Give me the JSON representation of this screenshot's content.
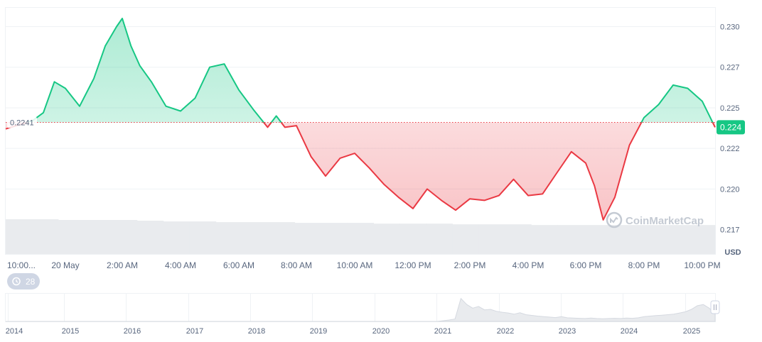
{
  "chart_data": {
    "type": "area",
    "reference_value": 0.2241,
    "reference_label": "0.2241",
    "last_price_label": "0.224",
    "currency_label": "USD",
    "watermark": "CoinMarketCap",
    "range_badge_value": "28",
    "ylim": [
      0.216,
      0.2312
    ],
    "y_ticks": [
      {
        "value": 0.23,
        "label": "0.230"
      },
      {
        "value": 0.2275,
        "label": "0.227"
      },
      {
        "value": 0.225,
        "label": "0.225"
      },
      {
        "value": 0.2225,
        "label": "0.222"
      },
      {
        "value": 0.22,
        "label": "0.220"
      },
      {
        "value": 0.2175,
        "label": "0.217"
      }
    ],
    "x_ticks": [
      "10:00...",
      "20 May",
      "2:00 AM",
      "4:00 AM",
      "6:00 AM",
      "8:00 AM",
      "10:00 AM",
      "12:00 PM",
      "2:00 PM",
      "4:00 PM",
      "6:00 PM",
      "8:00 PM",
      "10:00 PM"
    ],
    "x_tick_hours": [
      0,
      2,
      4,
      6,
      8,
      10,
      12,
      14,
      16,
      18,
      20,
      22,
      24
    ],
    "series": [
      {
        "x_hours": [
          0,
          0.5,
          1,
          1.5,
          2,
          2.5,
          3,
          3.4,
          3.8,
          4,
          4.3,
          4.6,
          5,
          5.5,
          6,
          6.5,
          7,
          7.5,
          8,
          8.5,
          9,
          9.3,
          9.6,
          10,
          10.5,
          11,
          11.5,
          12,
          12.5,
          13,
          13.5,
          14,
          14.5,
          15,
          15.5,
          16,
          16.5,
          17,
          17.5,
          18,
          18.5,
          19,
          19.5,
          20,
          20.3,
          20.6,
          21,
          21.5,
          22,
          22.5,
          23,
          23.5,
          24,
          24.5
        ],
        "values": [
          0.2237,
          0.2242,
          0.2247,
          0.2266,
          0.2262,
          0.2251,
          0.2268,
          0.2288,
          0.23,
          0.2305,
          0.2288,
          0.2276,
          0.2266,
          0.2251,
          0.2248,
          0.2256,
          0.2275,
          0.2277,
          0.2261,
          0.2249,
          0.2238,
          0.2245,
          0.2238,
          0.2239,
          0.222,
          0.2208,
          0.2219,
          0.2222,
          0.2213,
          0.2203,
          0.2195,
          0.2188,
          0.22,
          0.2193,
          0.2187,
          0.2194,
          0.2193,
          0.2196,
          0.2206,
          0.2196,
          0.2197,
          0.221,
          0.2223,
          0.2216,
          0.2202,
          0.2181,
          0.2195,
          0.2227,
          0.2244,
          0.2252,
          0.2264,
          0.2262,
          0.2254,
          0.2238
        ]
      }
    ],
    "volume": [
      0.48,
      0.48,
      0.47,
      0.47,
      0.47,
      0.46,
      0.45,
      0.45,
      0.44,
      0.44,
      0.44,
      0.43,
      0.43,
      0.43,
      0.42,
      0.42,
      0.42,
      0.41,
      0.41,
      0.41,
      0.4,
      0.4,
      0.4,
      0.4,
      0.4,
      0.4,
      0.4
    ],
    "history": {
      "year_labels": [
        "2014",
        "2015",
        "2016",
        "2017",
        "2018",
        "2019",
        "2020",
        "2021",
        "2022",
        "2023",
        "2024",
        "2025"
      ],
      "values": [
        0,
        0,
        0,
        0,
        0,
        0,
        0,
        0,
        0,
        0,
        0,
        0,
        0,
        0,
        0,
        0,
        0,
        0,
        0,
        0,
        0,
        0,
        0,
        0,
        0,
        0,
        0,
        0,
        0,
        0,
        0,
        0,
        0,
        0,
        0,
        0,
        0,
        0,
        0,
        0,
        0,
        0,
        0,
        0,
        0,
        0,
        0,
        0,
        0,
        0,
        0,
        0,
        0,
        0,
        0,
        0,
        0,
        0,
        0,
        0,
        0,
        0,
        0,
        0,
        0,
        0,
        0,
        0,
        0,
        0,
        0,
        0,
        0,
        0,
        0.03,
        0.06,
        0.1,
        0.95,
        0.7,
        0.55,
        0.62,
        0.48,
        0.5,
        0.42,
        0.38,
        0.35,
        0.3,
        0.36,
        0.28,
        0.25,
        0.22,
        0.2,
        0.18,
        0.16,
        0.2,
        0.15,
        0.14,
        0.13,
        0.12,
        0.14,
        0.12,
        0.11,
        0.12,
        0.13,
        0.12,
        0.14,
        0.13,
        0.15,
        0.2,
        0.22,
        0.24,
        0.26,
        0.28,
        0.3,
        0.35,
        0.4,
        0.5,
        0.65,
        0.7,
        0.55,
        0.3
      ]
    },
    "colors": {
      "up": "#16c784",
      "down": "#ea3943",
      "grid": "#eff2f5",
      "axis_text": "#58667e",
      "reference_line": "#ea3943",
      "volume": "#e9ebee",
      "watermark": "#c4cad3",
      "badge_bg": "#cfd6e4"
    }
  }
}
